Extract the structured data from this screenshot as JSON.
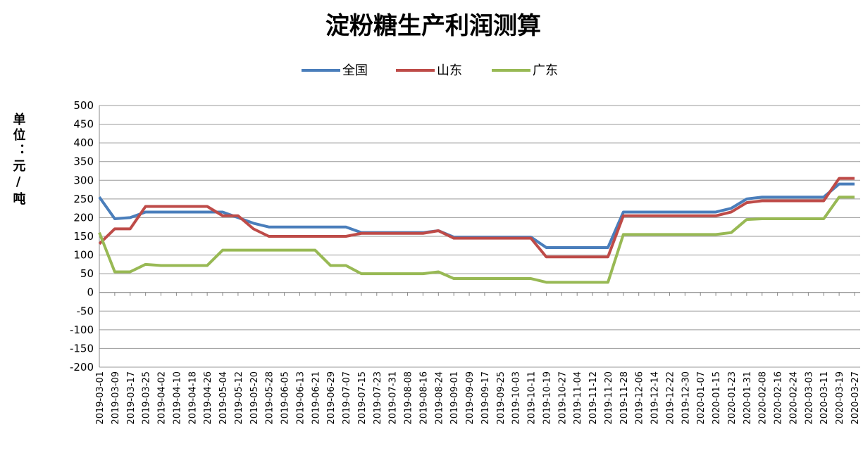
{
  "chart_data": {
    "type": "line",
    "title": "淀粉糖生产利润测算",
    "y_label": "单位：元/吨",
    "categories": [
      "2019-03-01",
      "2019-03-09",
      "2019-03-17",
      "2019-03-25",
      "2019-04-02",
      "2019-04-10",
      "2019-04-18",
      "2019-04-26",
      "2019-05-04",
      "2019-05-12",
      "2019-05-20",
      "2019-05-28",
      "2019-06-05",
      "2019-06-13",
      "2019-06-21",
      "2019-06-29",
      "2019-07-07",
      "2019-07-15",
      "2019-07-23",
      "2019-07-31",
      "2019-08-08",
      "2019-08-16",
      "2019-08-24",
      "2019-09-01",
      "2019-09-09",
      "2019-09-17",
      "2019-09-25",
      "2019-10-03",
      "2019-10-11",
      "2019-10-19",
      "2019-10-27",
      "2019-11-04",
      "2019-11-12",
      "2019-11-20",
      "2019-11-28",
      "2019-12-06",
      "2019-12-14",
      "2019-12-22",
      "2019-12-30",
      "2020-01-07",
      "2020-01-15",
      "2020-01-23",
      "2020-01-31",
      "2020-02-08",
      "2020-02-16",
      "2020-02-24",
      "2020-03-03",
      "2020-03-11",
      "2020-03-19",
      "2020-03-27"
    ],
    "series": [
      {
        "name": "全国",
        "color": "#4a7ebb",
        "values": [
          255,
          197,
          200,
          215,
          215,
          215,
          215,
          215,
          215,
          200,
          185,
          175,
          175,
          175,
          175,
          175,
          175,
          160,
          160,
          160,
          160,
          160,
          165,
          148,
          148,
          148,
          148,
          148,
          148,
          120,
          120,
          120,
          120,
          120,
          215,
          215,
          215,
          215,
          215,
          215,
          215,
          225,
          250,
          255,
          255,
          255,
          255,
          255,
          290,
          290
        ]
      },
      {
        "name": "山东",
        "color": "#be4b48",
        "values": [
          130,
          170,
          170,
          230,
          230,
          230,
          230,
          230,
          205,
          205,
          170,
          150,
          150,
          150,
          150,
          150,
          150,
          158,
          158,
          158,
          158,
          158,
          165,
          145,
          145,
          145,
          145,
          145,
          145,
          95,
          95,
          95,
          95,
          95,
          205,
          205,
          205,
          205,
          205,
          205,
          205,
          215,
          240,
          245,
          245,
          245,
          245,
          245,
          305,
          305
        ]
      },
      {
        "name": "广东",
        "color": "#98b954",
        "values": [
          160,
          55,
          55,
          75,
          72,
          72,
          72,
          72,
          113,
          113,
          113,
          113,
          113,
          113,
          113,
          72,
          72,
          50,
          50,
          50,
          50,
          50,
          55,
          37,
          37,
          37,
          37,
          37,
          37,
          27,
          27,
          27,
          27,
          27,
          155,
          155,
          155,
          155,
          155,
          155,
          155,
          160,
          195,
          197,
          197,
          197,
          197,
          197,
          255,
          255
        ]
      }
    ],
    "ylim": [
      -200,
      500
    ],
    "yticks": [
      -200,
      -150,
      -100,
      -50,
      0,
      50,
      100,
      150,
      200,
      250,
      300,
      350,
      400,
      450,
      500
    ],
    "grid": true,
    "legend": "top"
  }
}
